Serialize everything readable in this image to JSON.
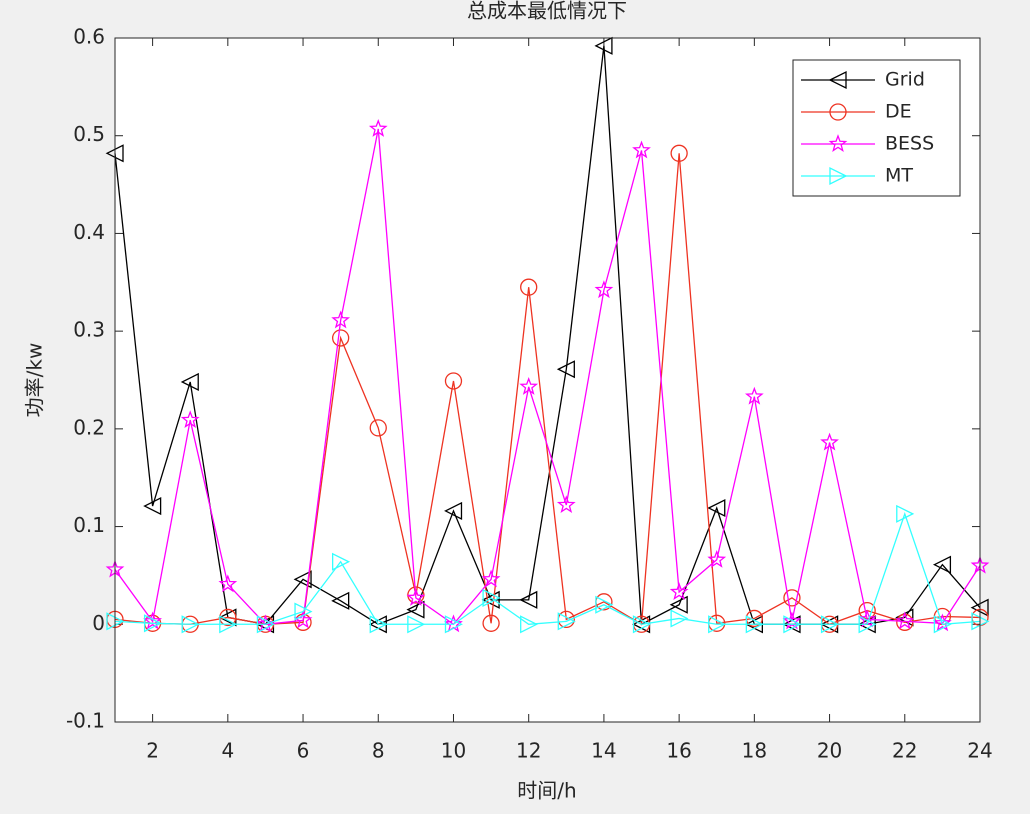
{
  "chart_data": {
    "type": "line",
    "title": "总成本最低情况下",
    "xlabel": "时间/h",
    "ylabel": "功率/kw",
    "x": [
      1,
      2,
      3,
      4,
      5,
      6,
      7,
      8,
      9,
      10,
      11,
      12,
      13,
      14,
      15,
      16,
      17,
      18,
      19,
      20,
      21,
      22,
      23,
      24
    ],
    "series": [
      {
        "name": "Grid",
        "color": "#000000",
        "marker": "triangle-left",
        "values": [
          0.482,
          0.121,
          0.248,
          0.007,
          0,
          0.046,
          0.024,
          0,
          0.015,
          0.116,
          0.025,
          0.025,
          0.261,
          0.592,
          0,
          0.02,
          0.119,
          0,
          0,
          0,
          0,
          0.007,
          0.061,
          0.017
        ]
      },
      {
        "name": "DE",
        "color": "#ee3322",
        "marker": "circle",
        "values": [
          0.005,
          0.001,
          0,
          0.007,
          0,
          0.002,
          0.293,
          0.201,
          0.03,
          0.249,
          0.001,
          0.345,
          0.005,
          0.023,
          0,
          0.482,
          0.001,
          0.006,
          0.027,
          0,
          0.014,
          0.002,
          0.008,
          0.007
        ]
      },
      {
        "name": "BESS",
        "color": "#ff00ff",
        "marker": "star",
        "values": [
          0.056,
          0.003,
          0.209,
          0.041,
          0,
          0.004,
          0.311,
          0.507,
          0.027,
          0,
          0.046,
          0.243,
          0.122,
          0.342,
          0.485,
          0.033,
          0.066,
          0.233,
          0.003,
          0.186,
          0.005,
          0.003,
          0.001,
          0.06
        ]
      },
      {
        "name": "MT",
        "color": "#33ffff",
        "marker": "triangle-right",
        "values": [
          0.003,
          0.001,
          0,
          0,
          0,
          0.013,
          0.064,
          0,
          0,
          0,
          0.027,
          0,
          0.003,
          0.02,
          0,
          0.006,
          0,
          0,
          0,
          0,
          0,
          0.113,
          0,
          0.003
        ]
      }
    ],
    "xlim": [
      1,
      24
    ],
    "xticks": [
      2,
      4,
      6,
      8,
      10,
      12,
      14,
      16,
      18,
      20,
      22,
      24
    ],
    "ylim": [
      -0.1,
      0.6
    ],
    "yticks": [
      -0.1,
      0,
      0.1,
      0.2,
      0.3,
      0.4,
      0.5,
      0.6
    ],
    "grid": false,
    "legend": "northeast"
  }
}
